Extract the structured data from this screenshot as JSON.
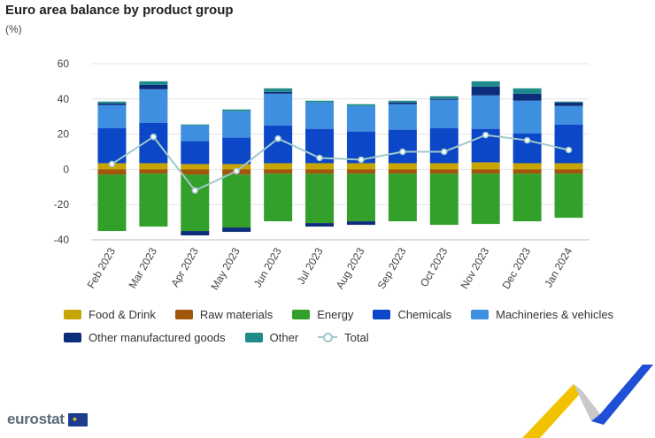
{
  "title": "Euro area balance by product group",
  "unit": "(%)",
  "logo_text": "eurostat",
  "flag_icon": "eu-flag-icon",
  "chart_data": {
    "type": "bar",
    "stacked": true,
    "categories": [
      "Feb 2023",
      "Mar 2023",
      "Apr 2023",
      "May 2023",
      "Jun 2023",
      "Jul 2023",
      "Aug 2023",
      "Sep 2023",
      "Oct 2023",
      "Nov 2023",
      "Dec 2023",
      "Jan 2024"
    ],
    "ylim": [
      -40,
      60
    ],
    "yticks": [
      60,
      40,
      20,
      0,
      -20,
      -40
    ],
    "grid": true,
    "legend_position": "bottom",
    "series": [
      {
        "name": "Food & Drink",
        "color": "#c8a400",
        "values": [
          3.5,
          3.5,
          3,
          3,
          3.5,
          3.5,
          3.5,
          3.5,
          3.5,
          4,
          3.5,
          3.5
        ]
      },
      {
        "name": "Raw materials",
        "color": "#a0570c",
        "values": [
          -3,
          -2.5,
          -3,
          -3,
          -2.5,
          -2.5,
          -2.5,
          -2.5,
          -2.5,
          -2.5,
          -2.5,
          -2.5
        ]
      },
      {
        "name": "Energy",
        "color": "#33a02c",
        "values": [
          -32,
          -30,
          -32,
          -30,
          -27,
          -28,
          -27,
          -27,
          -29,
          -28.5,
          -27,
          -25
        ]
      },
      {
        "name": "Chemicals",
        "color": "#0b47c6",
        "values": [
          20,
          23,
          13,
          15,
          21.5,
          19.5,
          18,
          19,
          20,
          19,
          17,
          22
        ]
      },
      {
        "name": "Machineries & vehicles",
        "color": "#3e8fdf",
        "values": [
          13,
          19,
          9,
          15,
          18,
          15,
          14.5,
          14.5,
          16,
          19,
          18.5,
          10.5
        ]
      },
      {
        "name": "Other manufactured goods",
        "color": "#0c2d7a",
        "values": [
          1,
          2.5,
          -2.5,
          -2.5,
          1,
          -2,
          -2,
          1,
          0.5,
          5,
          4,
          2
        ]
      },
      {
        "name": "Other",
        "color": "#1e8a8a",
        "values": [
          1,
          2,
          0.5,
          1,
          2,
          1,
          1,
          1,
          1.5,
          3,
          3,
          0.5
        ]
      }
    ],
    "line_series": {
      "name": "Total",
      "color": "#9fc9cc",
      "values": [
        3,
        18.5,
        -12,
        -1,
        17.5,
        6.5,
        5.5,
        10,
        10,
        19.5,
        16.5,
        11
      ]
    }
  }
}
